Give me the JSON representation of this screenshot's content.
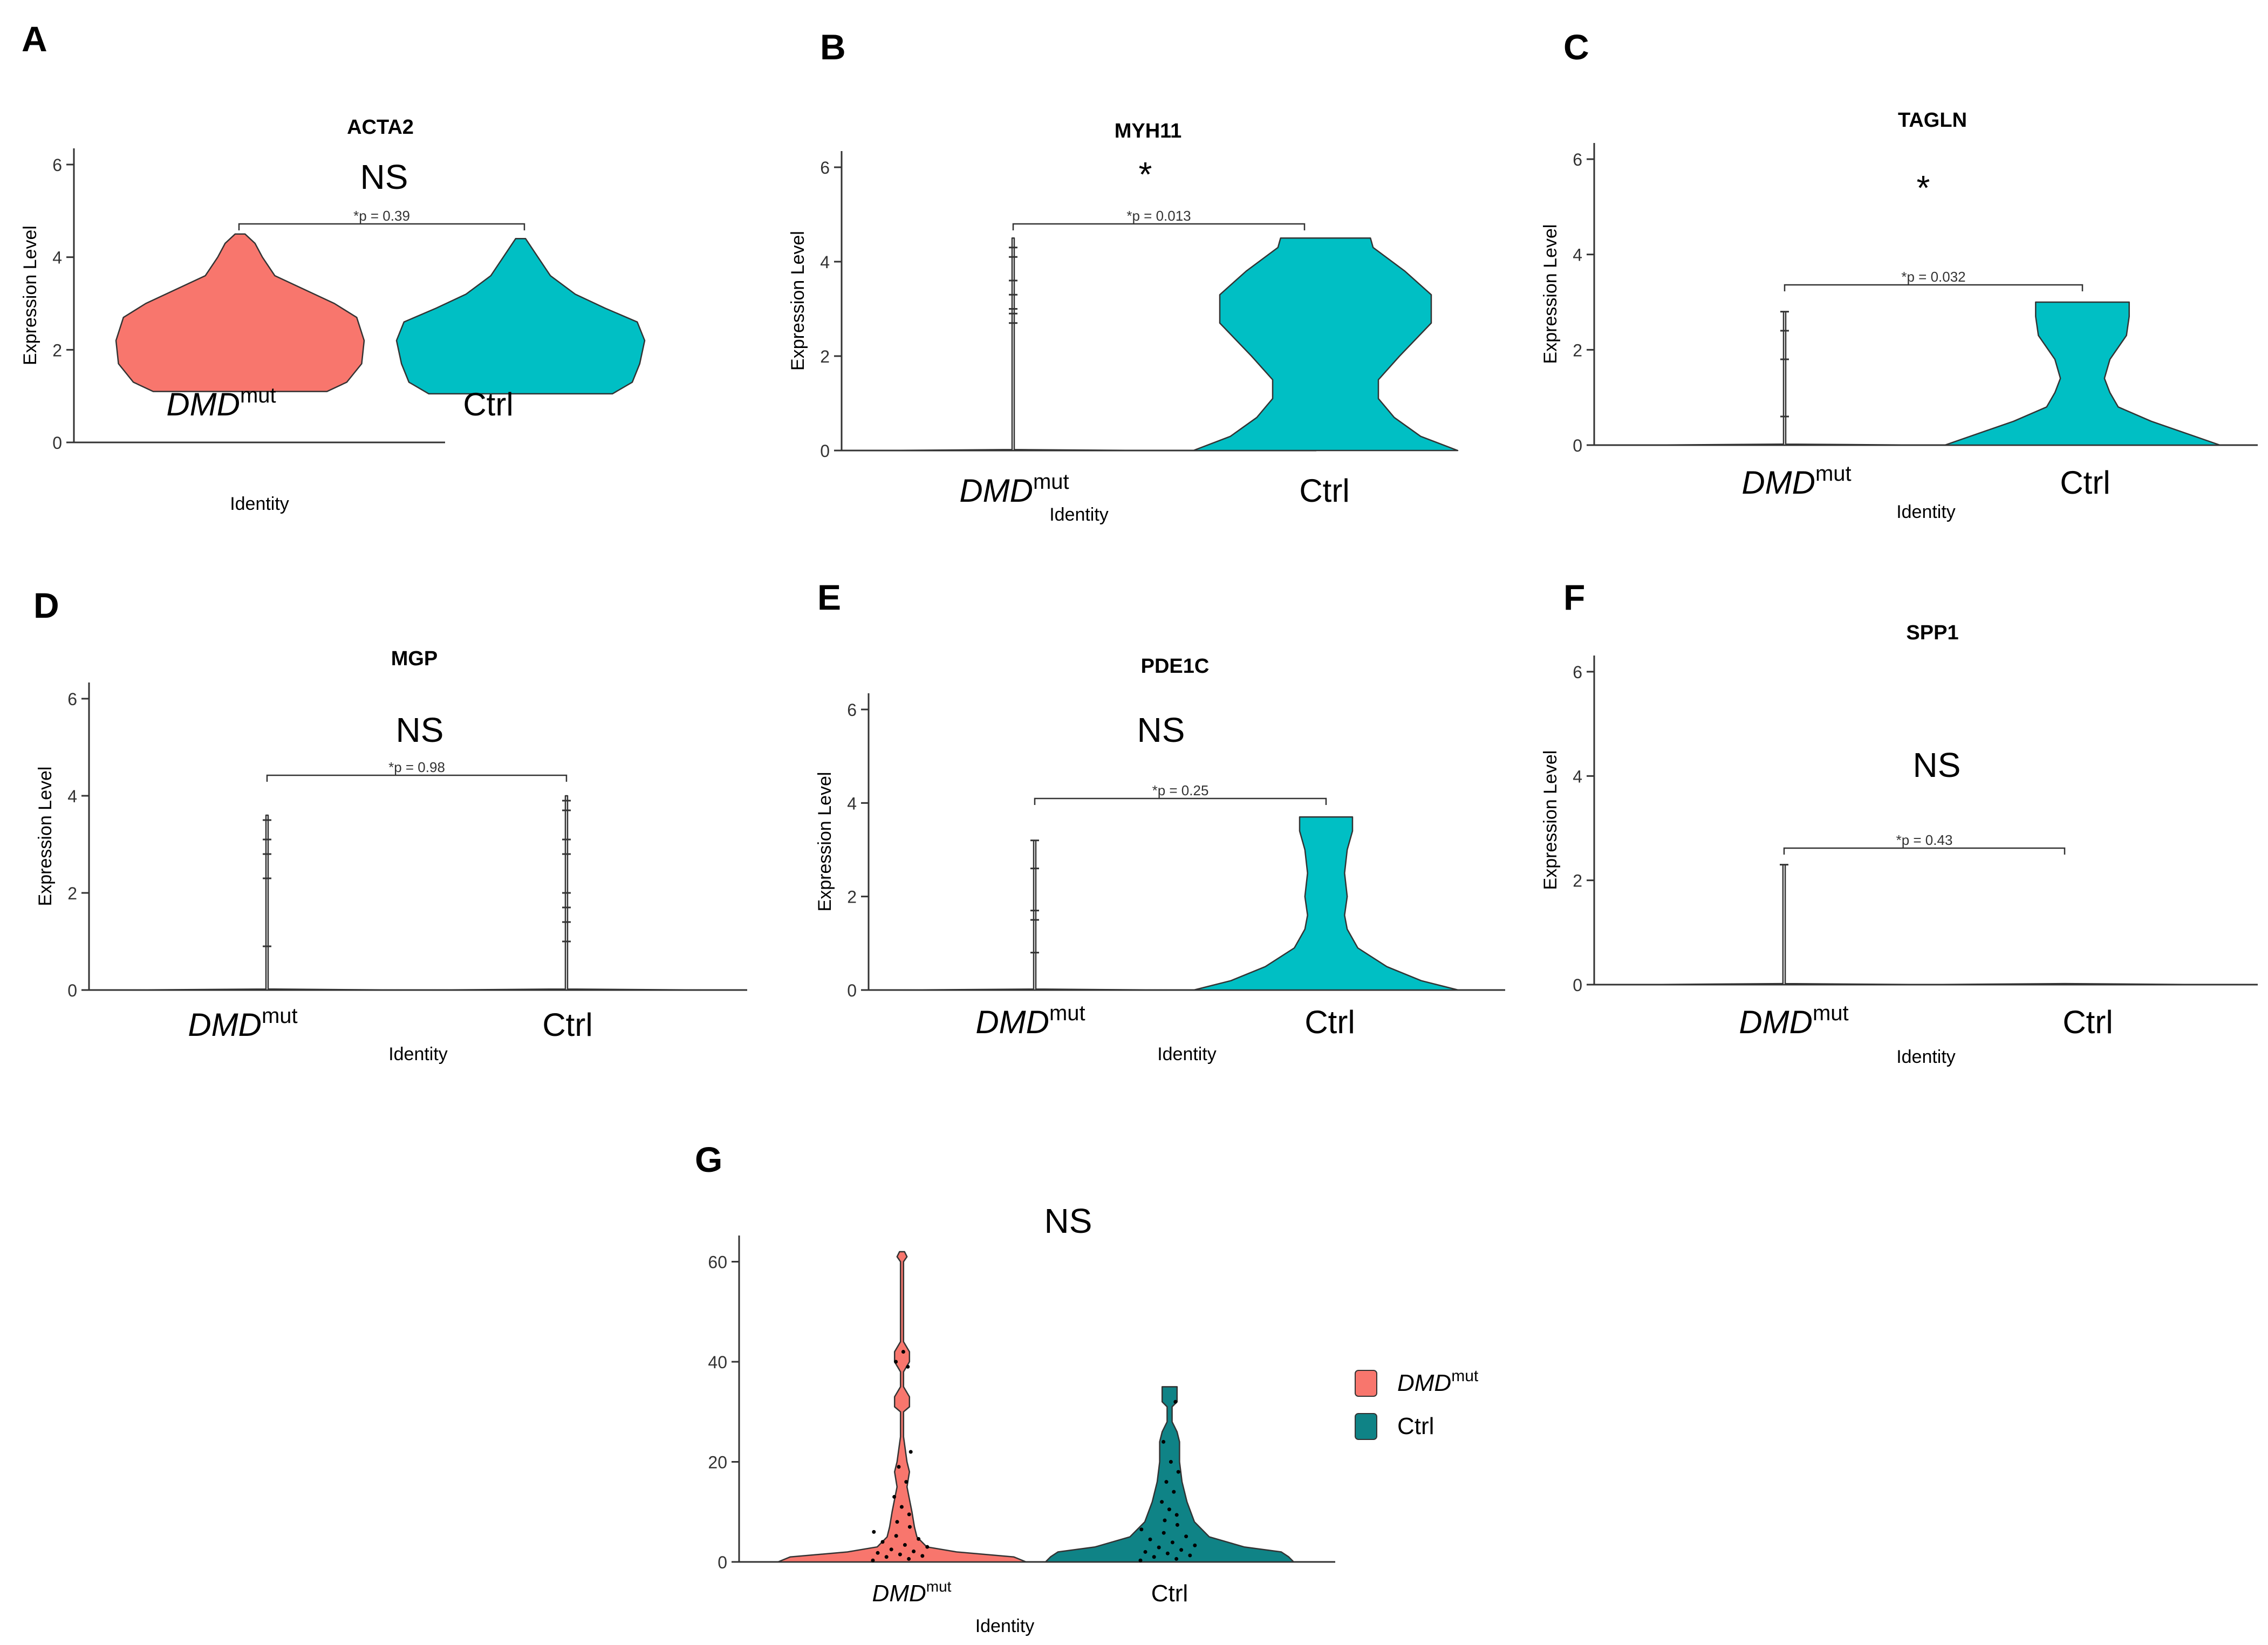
{
  "figure": {
    "legend": {
      "entries": [
        {
          "label_main": "DMD",
          "label_sup": "mut",
          "color": "#F8766D"
        },
        {
          "label_main": "Ctrl",
          "label_sup": "",
          "color": "#0F8386"
        }
      ]
    }
  },
  "chart_data": [
    {
      "panel": "A",
      "type": "violin",
      "title": "ACTA2",
      "ylabel": "Expression Level",
      "xlabel": "Identity",
      "ylim": [
        0,
        6
      ],
      "yticks": [
        "0",
        "2",
        "4",
        "6"
      ],
      "categories": [
        {
          "main": "DMD",
          "sup": "mut",
          "italic": true
        },
        {
          "main": "Ctrl",
          "sup": "",
          "italic": false
        }
      ],
      "significance": "NS",
      "p_label": "*p = 0.39",
      "series": [
        {
          "category": "DMDmut",
          "color": "#F8766D",
          "min": 1.1,
          "max": 4.5,
          "profile": [
            [
              1.1,
              0.35
            ],
            [
              1.3,
              0.43
            ],
            [
              1.7,
              0.49
            ],
            [
              2.2,
              0.5
            ],
            [
              2.7,
              0.47
            ],
            [
              3.0,
              0.38
            ],
            [
              3.3,
              0.26
            ],
            [
              3.6,
              0.14
            ],
            [
              4.0,
              0.09
            ],
            [
              4.3,
              0.06
            ],
            [
              4.5,
              0.02
            ]
          ]
        },
        {
          "category": "Ctrl",
          "color": "#00BFC4",
          "min": 1.05,
          "max": 4.4,
          "profile": [
            [
              1.05,
              0.37
            ],
            [
              1.3,
              0.45
            ],
            [
              1.7,
              0.48
            ],
            [
              2.2,
              0.5
            ],
            [
              2.6,
              0.47
            ],
            [
              2.9,
              0.34
            ],
            [
              3.2,
              0.22
            ],
            [
              3.6,
              0.12
            ],
            [
              4.0,
              0.07
            ],
            [
              4.4,
              0.02
            ]
          ]
        }
      ]
    },
    {
      "panel": "B",
      "type": "violin",
      "title": "MYH11",
      "ylabel": "Expression Level",
      "xlabel": "Identity",
      "ylim": [
        0,
        6
      ],
      "yticks": [
        "0",
        "2",
        "4",
        "6"
      ],
      "categories": [
        {
          "main": "DMD",
          "sup": "mut",
          "italic": true
        },
        {
          "main": "Ctrl",
          "sup": "",
          "italic": false
        }
      ],
      "significance": "*",
      "p_label": "*p = 0.013",
      "series": [
        {
          "category": "DMDmut",
          "color": "#ffffff",
          "min": 0,
          "max": 4.5,
          "profile": [
            [
              0,
              0.5
            ],
            [
              0.02,
              0.004
            ],
            [
              4.5,
              0.004
            ]
          ],
          "points": [
            2.7,
            2.9,
            3.0,
            3.3,
            3.6,
            4.1,
            4.3
          ]
        },
        {
          "category": "Ctrl",
          "color": "#00BFC4",
          "min": 0,
          "max": 4.5,
          "profile": [
            [
              0,
              0.5
            ],
            [
              0.3,
              0.36
            ],
            [
              0.7,
              0.26
            ],
            [
              1.1,
              0.2
            ],
            [
              1.5,
              0.2
            ],
            [
              2.0,
              0.28
            ],
            [
              2.7,
              0.4
            ],
            [
              3.3,
              0.4
            ],
            [
              3.8,
              0.3
            ],
            [
              4.3,
              0.18
            ],
            [
              4.5,
              0.17
            ]
          ]
        }
      ]
    },
    {
      "panel": "C",
      "type": "violin",
      "title": "TAGLN",
      "ylabel": "Expression Level",
      "xlabel": "Identity",
      "ylim": [
        0,
        6
      ],
      "yticks": [
        "0",
        "2",
        "4",
        "6"
      ],
      "categories": [
        {
          "main": "DMD",
          "sup": "mut",
          "italic": true
        },
        {
          "main": "Ctrl",
          "sup": "",
          "italic": false
        }
      ],
      "significance": "*",
      "p_label": "*p = 0.032",
      "series": [
        {
          "category": "DMDmut",
          "color": "#ffffff",
          "min": 0,
          "max": 2.8,
          "profile": [
            [
              0,
              0.5
            ],
            [
              0.02,
              0.004
            ],
            [
              2.8,
              0.004
            ]
          ],
          "points": [
            0.6,
            1.8,
            2.4,
            2.8
          ]
        },
        {
          "category": "Ctrl",
          "color": "#00BFC4",
          "min": 0,
          "max": 3.0,
          "profile": [
            [
              0,
              0.5
            ],
            [
              0.2,
              0.4
            ],
            [
              0.5,
              0.25
            ],
            [
              0.8,
              0.13
            ],
            [
              1.1,
              0.1
            ],
            [
              1.4,
              0.08
            ],
            [
              1.8,
              0.1
            ],
            [
              2.3,
              0.16
            ],
            [
              2.7,
              0.17
            ],
            [
              3.0,
              0.17
            ]
          ]
        }
      ]
    },
    {
      "panel": "D",
      "type": "violin",
      "title": "MGP",
      "ylabel": "Expression Level",
      "xlabel": "Identity",
      "ylim": [
        0,
        6
      ],
      "yticks": [
        "0",
        "2",
        "4",
        "6"
      ],
      "categories": [
        {
          "main": "DMD",
          "sup": "mut",
          "italic": true
        },
        {
          "main": "Ctrl",
          "sup": "",
          "italic": false
        }
      ],
      "significance": "NS",
      "p_label": "*p = 0.98",
      "series": [
        {
          "category": "DMDmut",
          "color": "#ffffff",
          "min": 0,
          "max": 3.6,
          "profile": [
            [
              0,
              0.5
            ],
            [
              0.02,
              0.004
            ],
            [
              3.6,
              0.004
            ]
          ],
          "points": [
            0.9,
            2.3,
            2.8,
            3.1,
            3.5
          ]
        },
        {
          "category": "Ctrl",
          "color": "#ffffff",
          "min": 0,
          "max": 4.0,
          "profile": [
            [
              0,
              0.5
            ],
            [
              0.02,
              0.004
            ],
            [
              4.0,
              0.004
            ]
          ],
          "points": [
            1.0,
            1.4,
            1.7,
            2.0,
            2.8,
            3.1,
            3.7,
            3.9
          ]
        }
      ]
    },
    {
      "panel": "E",
      "type": "violin",
      "title": "PDE1C",
      "ylabel": "Expression Level",
      "xlabel": "Identity",
      "ylim": [
        0,
        6
      ],
      "yticks": [
        "0",
        "2",
        "4",
        "6"
      ],
      "categories": [
        {
          "main": "DMD",
          "sup": "mut",
          "italic": true
        },
        {
          "main": "Ctrl",
          "sup": "",
          "italic": false
        }
      ],
      "significance": "NS",
      "p_label": "*p = 0.25",
      "series": [
        {
          "category": "DMDmut",
          "color": "#ffffff",
          "min": 0,
          "max": 3.2,
          "profile": [
            [
              0,
              0.5
            ],
            [
              0.02,
              0.004
            ],
            [
              3.2,
              0.004
            ]
          ],
          "points": [
            0.8,
            1.5,
            1.7,
            2.6,
            3.2
          ]
        },
        {
          "category": "Ctrl",
          "color": "#00BFC4",
          "min": 0,
          "max": 3.7,
          "profile": [
            [
              0,
              0.5
            ],
            [
              0.2,
              0.36
            ],
            [
              0.5,
              0.23
            ],
            [
              0.9,
              0.12
            ],
            [
              1.3,
              0.08
            ],
            [
              1.6,
              0.07
            ],
            [
              2.0,
              0.08
            ],
            [
              2.5,
              0.07
            ],
            [
              3.0,
              0.08
            ],
            [
              3.4,
              0.1
            ],
            [
              3.7,
              0.1
            ]
          ]
        }
      ]
    },
    {
      "panel": "F",
      "type": "violin",
      "title": "SPP1",
      "ylabel": "Expression Level",
      "xlabel": "Identity",
      "ylim": [
        0,
        6
      ],
      "yticks": [
        "0",
        "2",
        "4",
        "6"
      ],
      "categories": [
        {
          "main": "DMD",
          "sup": "mut",
          "italic": true
        },
        {
          "main": "Ctrl",
          "sup": "",
          "italic": false
        }
      ],
      "significance": "NS",
      "p_label": "*p = 0.43",
      "series": [
        {
          "category": "DMDmut",
          "color": "#ffffff",
          "min": 0,
          "max": 2.3,
          "profile": [
            [
              0,
              0.5
            ],
            [
              0.02,
              0.004
            ],
            [
              2.3,
              0.004
            ]
          ],
          "points": [
            2.3
          ]
        },
        {
          "category": "Ctrl",
          "color": "#ffffff",
          "min": 0,
          "max": 0.02,
          "profile": [
            [
              0,
              0.5
            ],
            [
              0.02,
              0.004
            ]
          ]
        }
      ]
    },
    {
      "panel": "G",
      "type": "violin",
      "title": "",
      "ylabel": "",
      "xlabel": "Identity",
      "ylim": [
        0,
        62
      ],
      "yticks": [
        "0",
        "20",
        "40",
        "60"
      ],
      "categories": [
        {
          "main": "DMD",
          "sup": "mut",
          "italic": true
        },
        {
          "main": "Ctrl",
          "sup": "",
          "italic": false
        }
      ],
      "significance": "NS",
      "p_label": "",
      "series": [
        {
          "category": "DMDmut",
          "color": "#F8766D",
          "min": 0,
          "max": 62,
          "profile": [
            [
              0,
              0.5
            ],
            [
              1,
              0.45
            ],
            [
              2,
              0.22
            ],
            [
              3,
              0.1
            ],
            [
              5,
              0.06
            ],
            [
              7,
              0.05
            ],
            [
              10,
              0.04
            ],
            [
              15,
              0.02
            ],
            [
              18,
              0.03
            ],
            [
              20,
              0.02
            ],
            [
              25,
              0.006
            ],
            [
              30,
              0.006
            ],
            [
              31,
              0.03
            ],
            [
              33,
              0.03
            ],
            [
              35,
              0.006
            ],
            [
              38,
              0.006
            ],
            [
              40,
              0.03
            ],
            [
              42,
              0.03
            ],
            [
              44,
              0.006
            ],
            [
              60,
              0.006
            ],
            [
              61,
              0.02
            ],
            [
              62,
              0.01
            ]
          ],
          "points": [
            0.3,
            0.6,
            1.0,
            1.2,
            1.5,
            1.8,
            2.1,
            2.5,
            3.0,
            3.4,
            4.0,
            4.6,
            5.2,
            6.0,
            7.0,
            8.0,
            9.5,
            11,
            13,
            16,
            19,
            22,
            42,
            40,
            39
          ]
        },
        {
          "category": "Ctrl",
          "color": "#0F8386",
          "min": 0,
          "max": 35,
          "profile": [
            [
              0,
              0.5
            ],
            [
              1,
              0.48
            ],
            [
              2,
              0.45
            ],
            [
              3,
              0.3
            ],
            [
              5,
              0.16
            ],
            [
              8,
              0.1
            ],
            [
              12,
              0.07
            ],
            [
              16,
              0.05
            ],
            [
              20,
              0.04
            ],
            [
              24,
              0.04
            ],
            [
              26,
              0.03
            ],
            [
              28,
              0.01
            ],
            [
              31,
              0.01
            ],
            [
              32,
              0.03
            ],
            [
              35,
              0.03
            ]
          ],
          "points": [
            0.3,
            0.6,
            1.0,
            1.3,
            1.7,
            2.0,
            2.4,
            2.9,
            3.3,
            3.9,
            4.5,
            5.1,
            5.8,
            6.5,
            7.4,
            8.3,
            9.4,
            10.5,
            12,
            14,
            16,
            18,
            20,
            24,
            32
          ]
        }
      ]
    }
  ]
}
